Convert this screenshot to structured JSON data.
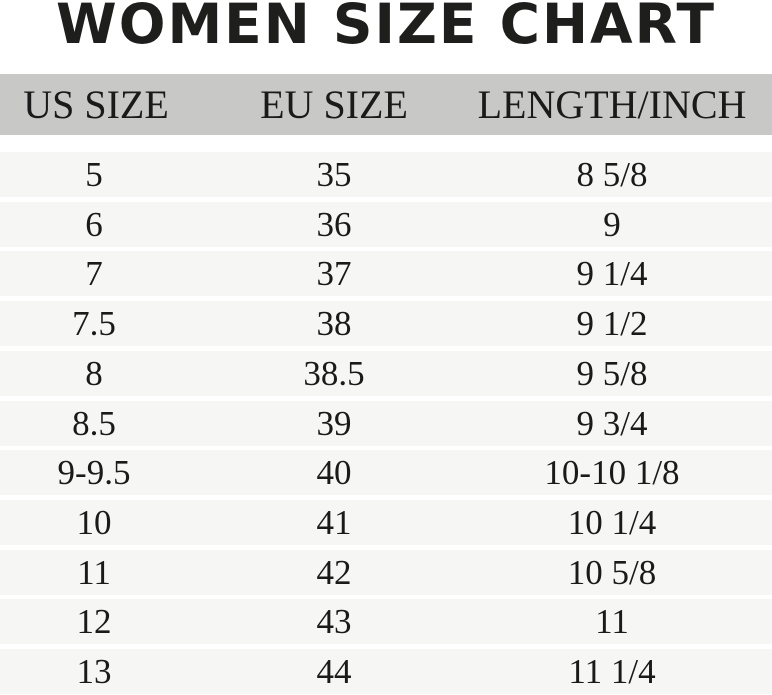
{
  "title": "WOMEN SIZE CHART",
  "columns": [
    "US SIZE",
    "EU SIZE",
    "LENGTH/INCH"
  ],
  "rows": [
    [
      "5",
      "35",
      "8 5/8"
    ],
    [
      "6",
      "36",
      "9"
    ],
    [
      "7",
      "37",
      "9 1/4"
    ],
    [
      "7.5",
      "38",
      "9 1/2"
    ],
    [
      "8",
      "38.5",
      "9 5/8"
    ],
    [
      "8.5",
      "39",
      "9 3/4"
    ],
    [
      "9-9.5",
      "40",
      "10-10 1/8"
    ],
    [
      "10",
      "41",
      "10 1/4"
    ],
    [
      "11",
      "42",
      "10 5/8"
    ],
    [
      "12",
      "43",
      "11"
    ],
    [
      "13",
      "44",
      "11 1/4"
    ]
  ],
  "colors": {
    "header_bg": "#c8c8c6",
    "row_bg": "#f6f6f4",
    "text": "#1a1a1a"
  }
}
